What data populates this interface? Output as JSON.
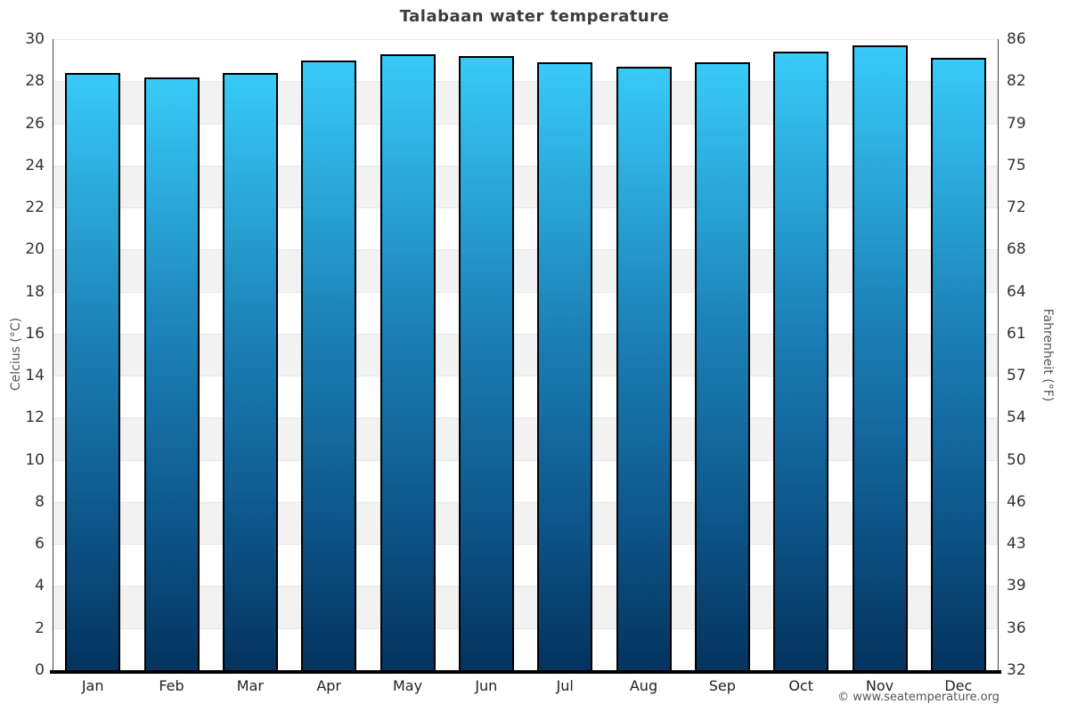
{
  "footer": {
    "copyright": "© www.seatemperature.org"
  },
  "chart_data": {
    "type": "bar",
    "title": "Talabaan water temperature",
    "categories": [
      "Jan",
      "Feb",
      "Mar",
      "Apr",
      "May",
      "Jun",
      "Jul",
      "Aug",
      "Sep",
      "Oct",
      "Nov",
      "Dec"
    ],
    "values": [
      28.4,
      28.2,
      28.4,
      29.0,
      29.3,
      29.2,
      28.9,
      28.7,
      28.9,
      29.4,
      29.7,
      29.1
    ],
    "unit": "°C",
    "xlabel": "",
    "ylabel_left": "Celcius (°C)",
    "ylabel_right": "Fahrenheit (°F)",
    "ylim": [
      0,
      30
    ],
    "ytick_step": 2,
    "yticks_celsius": [
      30,
      28,
      26,
      24,
      22,
      20,
      18,
      16,
      14,
      12,
      10,
      8,
      6,
      4,
      2,
      0
    ],
    "yticks_fahrenheit": [
      86,
      82,
      79,
      75,
      72,
      68,
      64,
      61,
      57,
      54,
      50,
      46,
      43,
      39,
      36,
      32
    ],
    "legend": "none",
    "grid": "alternating-horizontal-bands",
    "colors": {
      "bar_gradient_top": "#38CAF8",
      "bar_gradient_upper_mid": "#1B7FB5",
      "bar_gradient_lower_mid": "#0D568A",
      "bar_gradient_bottom": "#04335E",
      "bar_border": "#000000",
      "band_fill": "#F2F2F2",
      "gridline": "#E7E7E7",
      "y_axis_line": "#444444",
      "x_axis_line": "#000000",
      "title_text": "#3C3C3C",
      "tick_text": "#333333",
      "axis_title_text": "#555555",
      "credits_text": "#555555"
    }
  }
}
